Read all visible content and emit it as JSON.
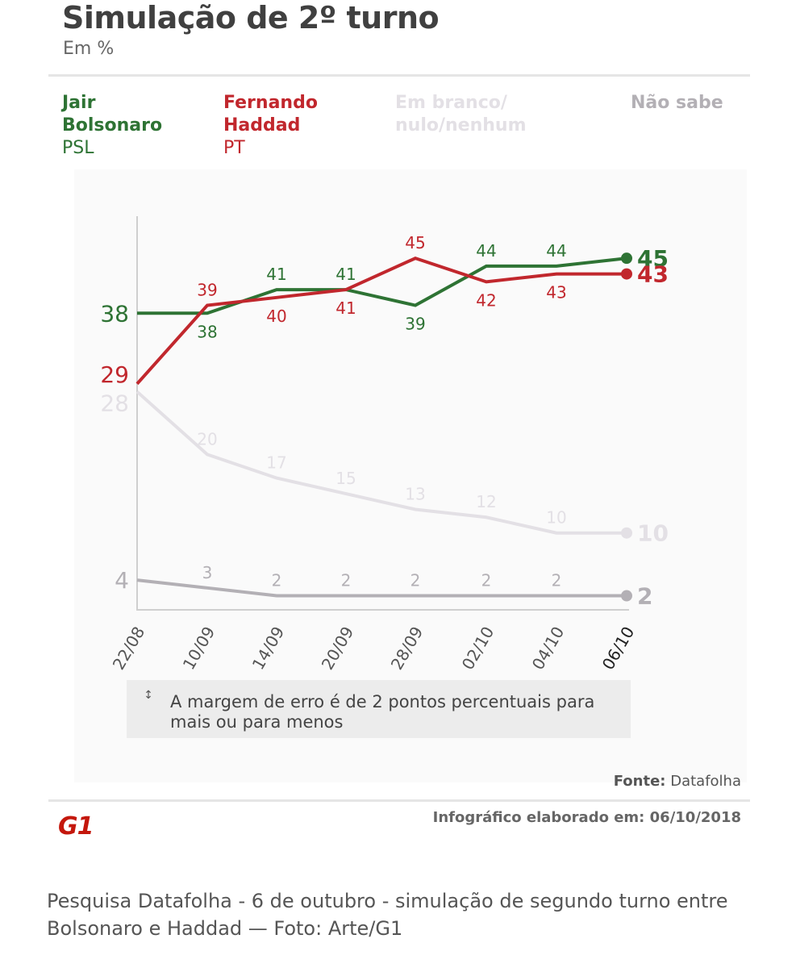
{
  "title": "Simulação de 2º turno",
  "subtitle": "Em %",
  "legend": [
    {
      "name": "Jair\nBolsonaro",
      "party": "PSL",
      "color": "#2e7334"
    },
    {
      "name": "Fernando\nHaddad",
      "party": "PT",
      "color": "#c1272d"
    },
    {
      "name": "Em branco/\nnulo/nenhum",
      "party": "",
      "color": "#e3e0e5"
    },
    {
      "name": "Não sabe",
      "party": "",
      "color": "#b3b0b5"
    }
  ],
  "margin_note": {
    "icon": "margin-of-error-icon",
    "text": "A margem de erro é de 2 pontos percentuais para mais ou para menos"
  },
  "source": {
    "label": "Fonte:",
    "value": "Datafolha"
  },
  "created": "Infográfico elaborado em: 06/10/2018",
  "logo": "G1",
  "caption": "Pesquisa Datafolha - 6 de outubro - simulação de segundo turno entre Bolsonaro e Haddad — Foto: Arte/G1",
  "chart_data": {
    "type": "line",
    "title": "Simulação de 2º turno",
    "subtitle": "Em %",
    "categories": [
      "22/08",
      "10/09",
      "14/09",
      "20/09",
      "28/09",
      "02/10",
      "04/10",
      "06/10"
    ],
    "series": [
      {
        "name": "Jair Bolsonaro",
        "party": "PSL",
        "color": "#2e7334",
        "values": [
          38,
          38,
          41,
          41,
          39,
          44,
          44,
          45
        ]
      },
      {
        "name": "Fernando Haddad",
        "party": "PT",
        "color": "#c1272d",
        "values": [
          29,
          39,
          40,
          41,
          45,
          42,
          43,
          43
        ]
      },
      {
        "name": "Em branco/nulo/nenhum",
        "color": "#e3e0e5",
        "values": [
          28,
          20,
          17,
          15,
          13,
          12,
          10,
          10
        ]
      },
      {
        "name": "Não sabe",
        "color": "#b3b0b5",
        "values": [
          4,
          3,
          2,
          2,
          2,
          2,
          2,
          2
        ]
      }
    ],
    "grid": false,
    "legend_position": "top"
  }
}
